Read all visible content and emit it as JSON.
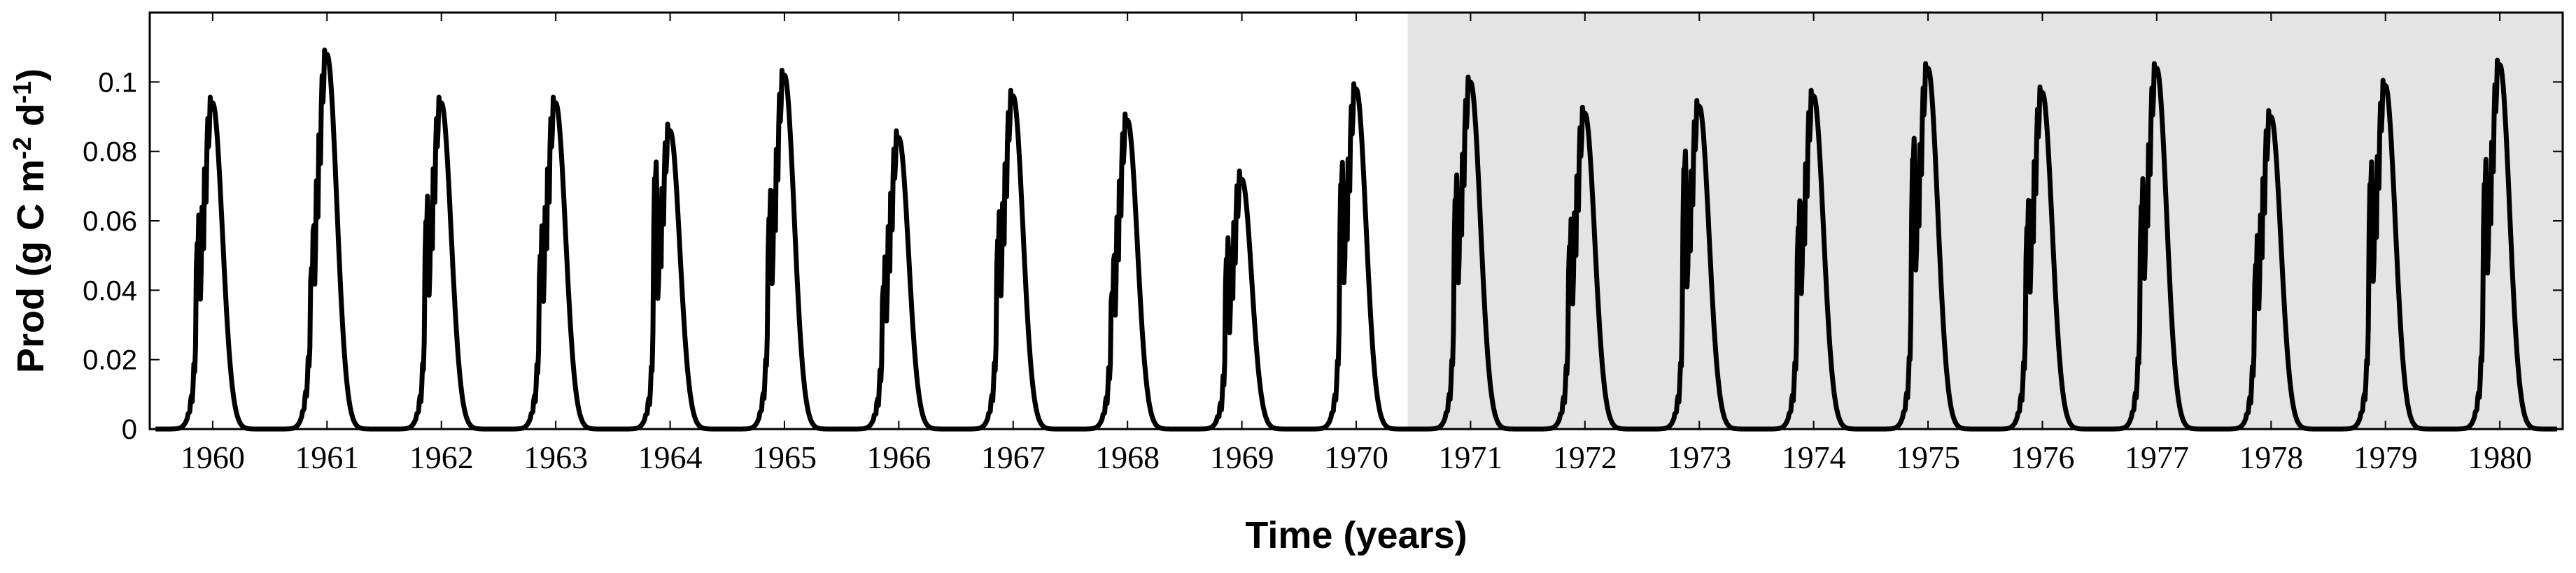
{
  "chart_data": {
    "type": "line",
    "title": "",
    "xlabel": "Time (years)",
    "ylabel": {
      "base": "Prod (g C m",
      "sup1": "-2",
      "mid": " d",
      "sup2": "-1",
      "end": ")"
    },
    "xlim": [
      1959.45,
      1980.55
    ],
    "ylim": [
      0,
      0.12
    ],
    "grid": false,
    "legend": "none",
    "shaded_region": {
      "x_start": 1970.45,
      "x_end": 1980.55,
      "color": "#e4e4e4"
    },
    "line_color": "#000000",
    "x_ticks": [
      1960,
      1961,
      1962,
      1963,
      1964,
      1965,
      1966,
      1967,
      1968,
      1969,
      1970,
      1971,
      1972,
      1973,
      1974,
      1975,
      1976,
      1977,
      1978,
      1979,
      1980
    ],
    "x_tick_labels": [
      "1960",
      "1961",
      "1962",
      "1963",
      "1964",
      "1965",
      "1966",
      "1967",
      "1968",
      "1969",
      "1970",
      "1971",
      "1972",
      "1973",
      "1974",
      "1975",
      "1976",
      "1977",
      "1978",
      "1979",
      "1980"
    ],
    "y_ticks": [
      0,
      0.02,
      0.04,
      0.06,
      0.08,
      0.1
    ],
    "y_tick_labels": [
      "0",
      "0.02",
      "0.04",
      "0.06",
      "0.08",
      "0.1"
    ],
    "series": [
      {
        "values_description": "annual productivity peaks (approximate peak per year)",
        "x": [
          1960,
          1961,
          1962,
          1963,
          1964,
          1965,
          1966,
          1967,
          1968,
          1969,
          1970,
          1971,
          1972,
          1973,
          1974,
          1975,
          1976,
          1977,
          1978,
          1979,
          1980
        ],
        "peak": [
          0.094,
          0.108,
          0.094,
          0.094,
          0.086,
          0.102,
          0.084,
          0.096,
          0.089,
          0.072,
          0.098,
          0.1,
          0.091,
          0.093,
          0.096,
          0.104,
          0.097,
          0.104,
          0.09,
          0.099,
          0.105
        ],
        "early_pulse": [
          0.059,
          0.051,
          0.066,
          0.055,
          0.08,
          0.067,
          0.045,
          0.06,
          0.043,
          0.054,
          0.078,
          0.073,
          0.058,
          0.083,
          0.064,
          0.086,
          0.064,
          0.071,
          0.052,
          0.078,
          0.078
        ]
      }
    ]
  }
}
